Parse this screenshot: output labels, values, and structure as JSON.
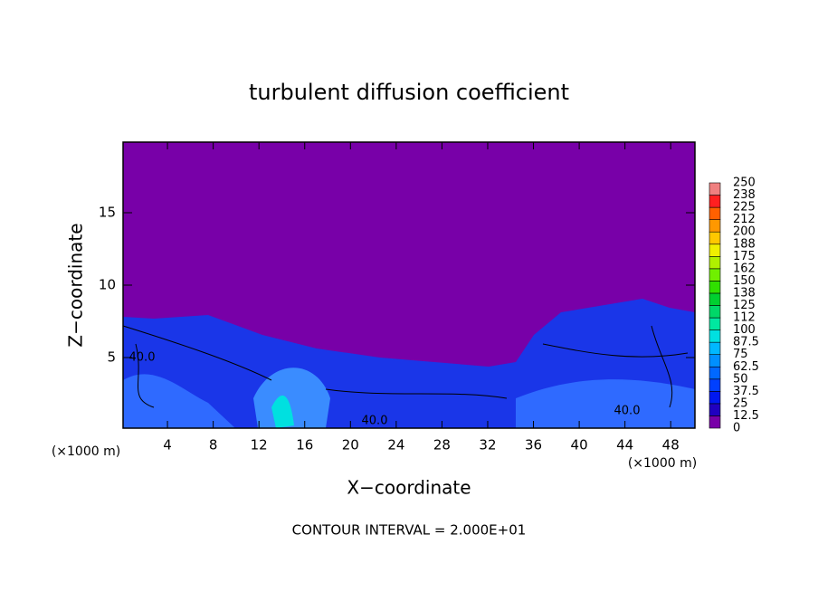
{
  "chart_data": {
    "type": "contour",
    "title": "turbulent diffusion coefficient",
    "x_label": "X−coordinate",
    "y_label": "Z−coordinate",
    "axis_unit": "(×1000 m)",
    "xlim": [
      0,
      50
    ],
    "xticks": [
      4,
      8,
      12,
      16,
      20,
      24,
      28,
      32,
      36,
      40,
      44,
      48
    ],
    "ylim": [
      0,
      20
    ],
    "yticks": [
      5,
      10,
      15
    ],
    "colorbar": {
      "levels": [
        0,
        12.5,
        25,
        37.5,
        50,
        62.5,
        75,
        87.5,
        100,
        112,
        125,
        138,
        150,
        162,
        175,
        188,
        200,
        212,
        225,
        238,
        250
      ],
      "colors": [
        "#7800a8",
        "#2000c0",
        "#0018f0",
        "#0040ff",
        "#0068ff",
        "#0090ff",
        "#00b8ff",
        "#00e0e0",
        "#00e8a0",
        "#00d868",
        "#00d030",
        "#30e000",
        "#70f000",
        "#b0f000",
        "#f0f000",
        "#ffc800",
        "#ff9800",
        "#ff6000",
        "#ff2020",
        "#f08080"
      ]
    },
    "contour_labels": [
      {
        "value": 40,
        "label": "40.0"
      },
      {
        "value": 40,
        "label": "40.0"
      },
      {
        "value": 40,
        "label": "40.0"
      }
    ],
    "footer": "CONTOUR INTERVAL = 2.000E+01"
  }
}
